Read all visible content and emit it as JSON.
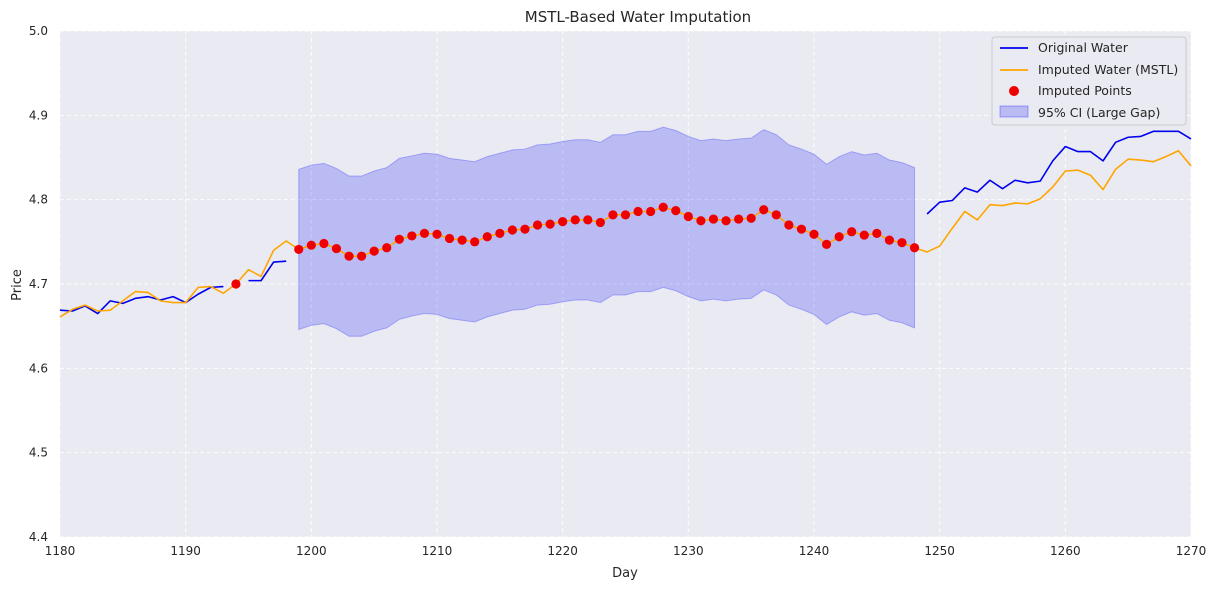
{
  "chart_data": {
    "type": "line",
    "title": "MSTL-Based Water Imputation",
    "xlabel": "Day",
    "ylabel": "Price",
    "xlim": [
      1180,
      1270
    ],
    "ylim": [
      4.4,
      5.0
    ],
    "xticks": [
      "1180",
      "1190",
      "1200",
      "1210",
      "1220",
      "1230",
      "1240",
      "1250",
      "1260",
      "1270"
    ],
    "yticks": [
      "4.4",
      "4.5",
      "4.6",
      "4.7",
      "4.8",
      "4.9",
      "5.0"
    ],
    "grid": true,
    "legend_position": "top-right",
    "colors": {
      "original": "#0000ee",
      "imputed": "#ffa500",
      "points": "#ee0000",
      "ci_fill": "#0000ff",
      "background": "#eaeaf2",
      "grid": "#ffffff"
    },
    "legend": [
      {
        "key": "original",
        "label": "Original Water"
      },
      {
        "key": "imputed",
        "label": "Imputed Water (MSTL)"
      },
      {
        "key": "points",
        "label": "Imputed Points"
      },
      {
        "key": "ci",
        "label": "95% CI (Large Gap)"
      }
    ],
    "original_series": [
      [
        [
          1180,
          4.669
        ],
        [
          1181,
          4.668
        ],
        [
          1182,
          4.674
        ],
        [
          1183,
          4.665
        ],
        [
          1184,
          4.68
        ],
        [
          1185,
          4.677
        ],
        [
          1186,
          4.683
        ],
        [
          1187,
          4.685
        ],
        [
          1188,
          4.681
        ],
        [
          1189,
          4.685
        ],
        [
          1190,
          4.678
        ],
        [
          1191,
          4.688
        ],
        [
          1192,
          4.696
        ],
        [
          1193,
          4.697
        ]
      ],
      [
        [
          1195,
          4.704
        ],
        [
          1196,
          4.704
        ],
        [
          1197,
          4.726
        ],
        [
          1198,
          4.727
        ]
      ],
      [
        [
          1249,
          4.783
        ],
        [
          1250,
          4.797
        ],
        [
          1251,
          4.799
        ],
        [
          1252,
          4.814
        ],
        [
          1253,
          4.809
        ],
        [
          1254,
          4.823
        ],
        [
          1255,
          4.813
        ],
        [
          1256,
          4.823
        ],
        [
          1257,
          4.82
        ],
        [
          1258,
          4.822
        ],
        [
          1259,
          4.846
        ],
        [
          1260,
          4.863
        ],
        [
          1261,
          4.857
        ],
        [
          1262,
          4.857
        ],
        [
          1263,
          4.846
        ],
        [
          1264,
          4.868
        ],
        [
          1265,
          4.874
        ],
        [
          1266,
          4.875
        ],
        [
          1267,
          4.881
        ],
        [
          1268,
          4.881
        ],
        [
          1269,
          4.881
        ],
        [
          1270,
          4.872
        ]
      ]
    ],
    "imputed_series": [
      [
        1180,
        4.661
      ],
      [
        1181,
        4.67
      ],
      [
        1182,
        4.675
      ],
      [
        1183,
        4.668
      ],
      [
        1184,
        4.669
      ],
      [
        1185,
        4.68
      ],
      [
        1186,
        4.691
      ],
      [
        1187,
        4.69
      ],
      [
        1188,
        4.68
      ],
      [
        1189,
        4.678
      ],
      [
        1190,
        4.678
      ],
      [
        1191,
        4.696
      ],
      [
        1192,
        4.697
      ],
      [
        1193,
        4.689
      ],
      [
        1194,
        4.7
      ],
      [
        1195,
        4.717
      ],
      [
        1196,
        4.709
      ],
      [
        1197,
        4.74
      ],
      [
        1198,
        4.751
      ],
      [
        1199,
        4.741
      ],
      [
        1200,
        4.746
      ],
      [
        1201,
        4.748
      ],
      [
        1202,
        4.742
      ],
      [
        1203,
        4.733
      ],
      [
        1204,
        4.733
      ],
      [
        1205,
        4.739
      ],
      [
        1206,
        4.743
      ],
      [
        1207,
        4.753
      ],
      [
        1208,
        4.757
      ],
      [
        1209,
        4.76
      ],
      [
        1210,
        4.759
      ],
      [
        1211,
        4.754
      ],
      [
        1212,
        4.752
      ],
      [
        1213,
        4.75
      ],
      [
        1214,
        4.756
      ],
      [
        1215,
        4.76
      ],
      [
        1216,
        4.764
      ],
      [
        1217,
        4.765
      ],
      [
        1218,
        4.77
      ],
      [
        1219,
        4.771
      ],
      [
        1220,
        4.774
      ],
      [
        1221,
        4.776
      ],
      [
        1222,
        4.776
      ],
      [
        1223,
        4.773
      ],
      [
        1224,
        4.782
      ],
      [
        1225,
        4.782
      ],
      [
        1226,
        4.786
      ],
      [
        1227,
        4.786
      ],
      [
        1228,
        4.791
      ],
      [
        1229,
        4.787
      ],
      [
        1230,
        4.78
      ],
      [
        1231,
        4.775
      ],
      [
        1232,
        4.777
      ],
      [
        1233,
        4.775
      ],
      [
        1234,
        4.777
      ],
      [
        1235,
        4.778
      ],
      [
        1236,
        4.788
      ],
      [
        1237,
        4.782
      ],
      [
        1238,
        4.77
      ],
      [
        1239,
        4.765
      ],
      [
        1240,
        4.759
      ],
      [
        1241,
        4.747
      ],
      [
        1242,
        4.756
      ],
      [
        1243,
        4.762
      ],
      [
        1244,
        4.758
      ],
      [
        1245,
        4.76
      ],
      [
        1246,
        4.752
      ],
      [
        1247,
        4.749
      ],
      [
        1248,
        4.743
      ],
      [
        1249,
        4.738
      ],
      [
        1250,
        4.745
      ],
      [
        1251,
        4.766
      ],
      [
        1252,
        4.786
      ],
      [
        1253,
        4.776
      ],
      [
        1254,
        4.794
      ],
      [
        1255,
        4.793
      ],
      [
        1256,
        4.796
      ],
      [
        1257,
        4.795
      ],
      [
        1258,
        4.801
      ],
      [
        1259,
        4.815
      ],
      [
        1260,
        4.834
      ],
      [
        1261,
        4.835
      ],
      [
        1262,
        4.829
      ],
      [
        1263,
        4.812
      ],
      [
        1264,
        4.836
      ],
      [
        1265,
        4.848
      ],
      [
        1266,
        4.847
      ],
      [
        1267,
        4.845
      ],
      [
        1268,
        4.851
      ],
      [
        1269,
        4.858
      ],
      [
        1270,
        4.84
      ]
    ],
    "imputed_points": [
      [
        1194,
        4.7
      ],
      [
        1199,
        4.741
      ],
      [
        1200,
        4.746
      ],
      [
        1201,
        4.748
      ],
      [
        1202,
        4.742
      ],
      [
        1203,
        4.733
      ],
      [
        1204,
        4.733
      ],
      [
        1205,
        4.739
      ],
      [
        1206,
        4.743
      ],
      [
        1207,
        4.753
      ],
      [
        1208,
        4.757
      ],
      [
        1209,
        4.76
      ],
      [
        1210,
        4.759
      ],
      [
        1211,
        4.754
      ],
      [
        1212,
        4.752
      ],
      [
        1213,
        4.75
      ],
      [
        1214,
        4.756
      ],
      [
        1215,
        4.76
      ],
      [
        1216,
        4.764
      ],
      [
        1217,
        4.765
      ],
      [
        1218,
        4.77
      ],
      [
        1219,
        4.771
      ],
      [
        1220,
        4.774
      ],
      [
        1221,
        4.776
      ],
      [
        1222,
        4.776
      ],
      [
        1223,
        4.773
      ],
      [
        1224,
        4.782
      ],
      [
        1225,
        4.782
      ],
      [
        1226,
        4.786
      ],
      [
        1227,
        4.786
      ],
      [
        1228,
        4.791
      ],
      [
        1229,
        4.787
      ],
      [
        1230,
        4.78
      ],
      [
        1231,
        4.775
      ],
      [
        1232,
        4.777
      ],
      [
        1233,
        4.775
      ],
      [
        1234,
        4.777
      ],
      [
        1235,
        4.778
      ],
      [
        1236,
        4.788
      ],
      [
        1237,
        4.782
      ],
      [
        1238,
        4.77
      ],
      [
        1239,
        4.765
      ],
      [
        1240,
        4.759
      ],
      [
        1241,
        4.747
      ],
      [
        1242,
        4.756
      ],
      [
        1243,
        4.762
      ],
      [
        1244,
        4.758
      ],
      [
        1245,
        4.76
      ],
      [
        1246,
        4.752
      ],
      [
        1247,
        4.749
      ],
      [
        1248,
        4.743
      ]
    ],
    "ci_band": {
      "x": [
        1199,
        1200,
        1201,
        1202,
        1203,
        1204,
        1205,
        1206,
        1207,
        1208,
        1209,
        1210,
        1211,
        1212,
        1213,
        1214,
        1215,
        1216,
        1217,
        1218,
        1219,
        1220,
        1221,
        1222,
        1223,
        1224,
        1225,
        1226,
        1227,
        1228,
        1229,
        1230,
        1231,
        1232,
        1233,
        1234,
        1235,
        1236,
        1237,
        1238,
        1239,
        1240,
        1241,
        1242,
        1243,
        1244,
        1245,
        1246,
        1247,
        1248
      ],
      "upper": [
        4.836,
        4.841,
        4.843,
        4.837,
        4.828,
        4.828,
        4.834,
        4.838,
        4.849,
        4.852,
        4.855,
        4.854,
        4.849,
        4.847,
        4.845,
        4.851,
        4.855,
        4.859,
        4.86,
        4.865,
        4.866,
        4.869,
        4.871,
        4.871,
        4.868,
        4.877,
        4.877,
        4.881,
        4.881,
        4.886,
        4.882,
        4.875,
        4.87,
        4.872,
        4.87,
        4.872,
        4.873,
        4.883,
        4.877,
        4.865,
        4.86,
        4.854,
        4.842,
        4.851,
        4.857,
        4.853,
        4.855,
        4.847,
        4.844,
        4.838
      ],
      "lower": [
        4.646,
        4.651,
        4.653,
        4.647,
        4.638,
        4.638,
        4.644,
        4.648,
        4.658,
        4.662,
        4.665,
        4.664,
        4.659,
        4.657,
        4.655,
        4.661,
        4.665,
        4.669,
        4.67,
        4.675,
        4.676,
        4.679,
        4.681,
        4.681,
        4.678,
        4.687,
        4.687,
        4.691,
        4.691,
        4.696,
        4.692,
        4.685,
        4.68,
        4.682,
        4.68,
        4.682,
        4.683,
        4.693,
        4.687,
        4.675,
        4.67,
        4.664,
        4.652,
        4.661,
        4.667,
        4.663,
        4.665,
        4.657,
        4.654,
        4.648
      ]
    }
  }
}
